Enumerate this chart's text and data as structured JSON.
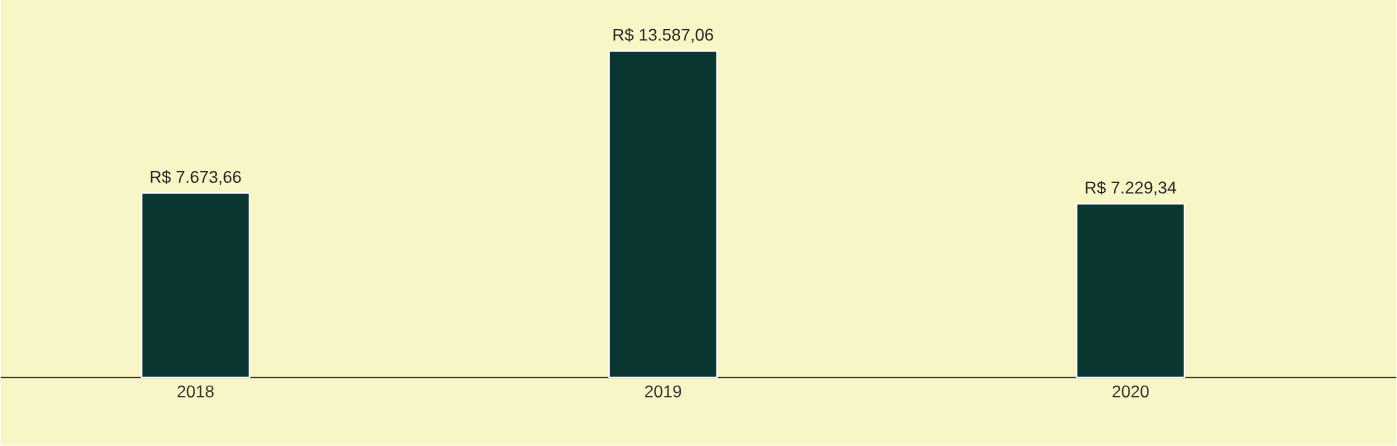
{
  "chart_data": {
    "type": "bar",
    "categories": [
      "2018",
      "2019",
      "2020"
    ],
    "values": [
      7673.66,
      13587.06,
      7229.34
    ],
    "value_labels": [
      "R$ 7.673,66",
      "R$ 13.587,06",
      "R$ 7.229,34"
    ],
    "color": "#0a3631"
  }
}
